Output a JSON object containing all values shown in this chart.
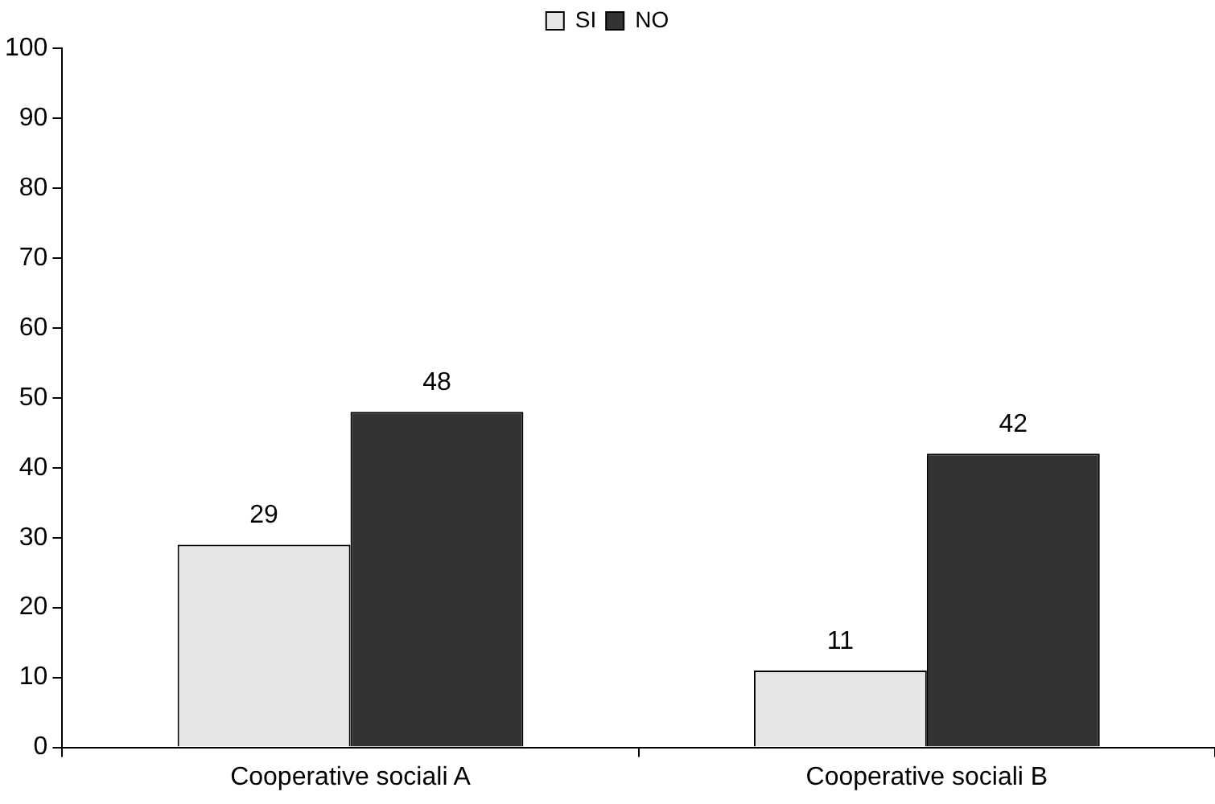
{
  "chart_data": {
    "type": "bar",
    "categories": [
      "Cooperative sociali A",
      "Cooperative sociali B"
    ],
    "series": [
      {
        "name": "SI",
        "color": "#e6e6e6",
        "values": [
          29,
          11
        ]
      },
      {
        "name": "NO",
        "color": "#333333",
        "values": [
          48,
          42
        ]
      }
    ],
    "ylim": [
      0,
      100
    ],
    "yticks": [
      0,
      10,
      20,
      30,
      40,
      50,
      60,
      70,
      80,
      90,
      100
    ],
    "legend": "top",
    "data_labels": true
  }
}
